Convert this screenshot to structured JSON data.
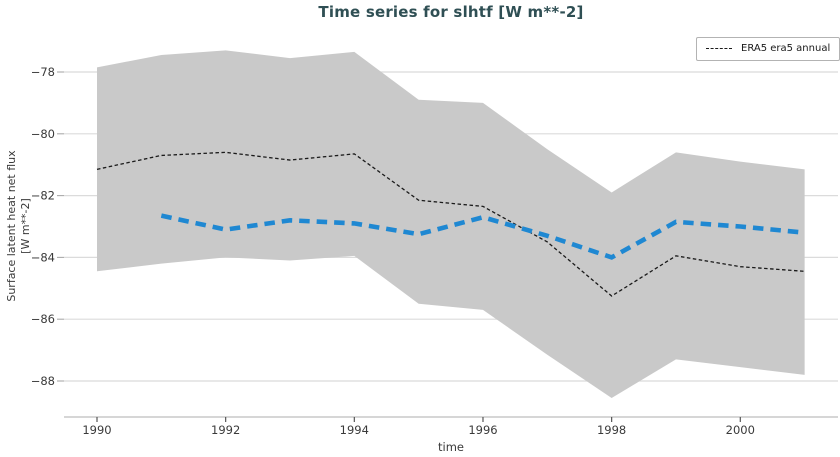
{
  "title": "Time series for slhtf [W m**-2]",
  "legend": {
    "items": [
      {
        "label": "ERA5 era5 annual",
        "sample_style": "dashed-black-line"
      }
    ]
  },
  "axes": {
    "x": {
      "label": "time",
      "ticks": [
        1990,
        1992,
        1994,
        1996,
        1998,
        2000
      ],
      "tick_labels": [
        "1990",
        "1992",
        "1994",
        "1996",
        "1998",
        "2000"
      ]
    },
    "y": {
      "label_line1": "Surface latent heat net flux",
      "label_line2": "[W m**-2]",
      "ticks": [
        -78,
        -80,
        -82,
        -84,
        -86,
        -88
      ],
      "tick_labels": [
        "−78",
        "−80",
        "−82",
        "−84",
        "−86",
        "−88"
      ]
    }
  },
  "colors": {
    "title": "#2f4f54",
    "text": "#3a3a3a",
    "grid": "#dbdbdb",
    "spine": "#c8c8c8",
    "tick_mark": "#555555",
    "band": "#c9c9c9",
    "era5_line": "#1a1a1a",
    "mean_line": "#1f88d2",
    "legend_border": "#b3b3b3"
  },
  "chart_data": {
    "type": "line",
    "title": "Time series for slhtf [W m**-2]",
    "xlabel": "time",
    "ylabel": "Surface latent heat net flux [W m**-2]",
    "xlim": [
      1989.5,
      2001.55
    ],
    "ylim": [
      -89.2,
      -76.85
    ],
    "grid": "horizontal",
    "legend_position": "top-right",
    "x": [
      1990,
      1991,
      1992,
      1993,
      1994,
      1995,
      1996,
      1997,
      1998,
      1999,
      2000,
      2001
    ],
    "series": [
      {
        "name": "ERA5 era5 annual",
        "style": "dashed-thin",
        "color": "#1a1a1a",
        "values": [
          -81.15,
          -80.7,
          -80.6,
          -80.85,
          -80.65,
          -82.15,
          -82.35,
          -83.5,
          -85.25,
          -83.95,
          -84.3,
          -84.45
        ]
      },
      {
        "name": "",
        "style": "dashed-thick",
        "color": "#1f88d2",
        "values": [
          null,
          -82.65,
          -83.1,
          -82.8,
          -82.9,
          -83.25,
          -82.7,
          -83.3,
          -84.0,
          -82.85,
          -83.0,
          -83.2
        ]
      }
    ],
    "band": {
      "color": "#c9c9c9",
      "upper": [
        -77.85,
        -77.45,
        -77.3,
        -77.55,
        -77.35,
        -78.9,
        -79.0,
        -80.5,
        -81.9,
        -80.6,
        -80.9,
        -81.15
      ],
      "lower": [
        -84.45,
        -84.2,
        -84.0,
        -84.1,
        -83.95,
        -85.5,
        -85.7,
        -87.15,
        -88.55,
        -87.3,
        -87.55,
        -87.8
      ]
    }
  }
}
